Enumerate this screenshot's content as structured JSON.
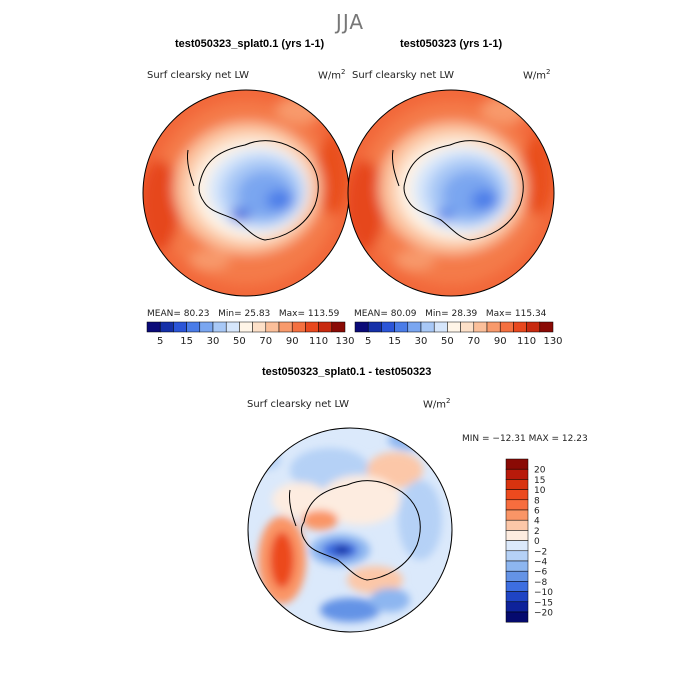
{
  "season": "JJA",
  "panels": [
    {
      "title": "test050323_splat0.1 (yrs 1-1)",
      "field_label": "Surf clearsky net LW",
      "units": "W/m",
      "units_exp": "2",
      "mean_label": "MEAN=",
      "mean": "80.23",
      "min_label": "Min=",
      "min": "25.83",
      "max_label": "Max=",
      "max": "113.59"
    },
    {
      "title": "test050323 (yrs 1-1)",
      "field_label": "Surf clearsky net LW",
      "units": "W/m",
      "units_exp": "2",
      "mean_label": "MEAN=",
      "mean": "80.09",
      "min_label": "Min=",
      "min": "28.39",
      "max_label": "Max=",
      "max": "115.34"
    }
  ],
  "diff_panel": {
    "title": "test050323_splat0.1 - test050323",
    "field_label": "Surf clearsky net LW",
    "units": "W/m",
    "units_exp": "2",
    "minmax": "MIN = −12.31 MAX =  12.23"
  },
  "abs_colorbar": {
    "tick_labels": [
      "5",
      "15",
      "30",
      "50",
      "70",
      "90",
      "110",
      "130"
    ],
    "colors": [
      "#0a0a78",
      "#1530a8",
      "#2b55d8",
      "#4a7ce8",
      "#7aa6f0",
      "#a8c8f6",
      "#d6e6fb",
      "#fff5e8",
      "#fde0c8",
      "#fbbf9a",
      "#f89a6c",
      "#f47040",
      "#e8481e",
      "#c82a10",
      "#8a0a05"
    ]
  },
  "diff_colorbar": {
    "tick_labels": [
      "20",
      "15",
      "10",
      "8",
      "6",
      "4",
      "2",
      "0",
      "−2",
      "−4",
      "−6",
      "−8",
      "−10",
      "−15",
      "−20"
    ],
    "colors": [
      "#8a0a05",
      "#b81a0a",
      "#d8330f",
      "#ec4a1e",
      "#f76d3e",
      "#fa9566",
      "#fcc7a8",
      "#fdece0",
      "#dbe9fb",
      "#b5d1f6",
      "#8db6f0",
      "#6493e6",
      "#3d6ee0",
      "#1f44c4",
      "#0e229a",
      "#050a6e"
    ]
  }
}
